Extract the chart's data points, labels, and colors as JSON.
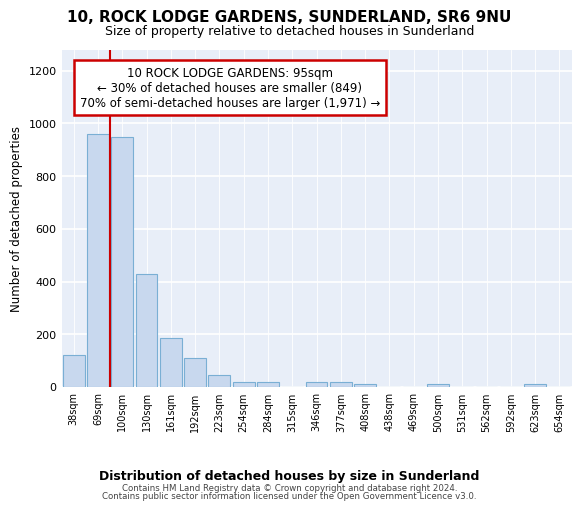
{
  "title": "10, ROCK LODGE GARDENS, SUNDERLAND, SR6 9NU",
  "subtitle": "Size of property relative to detached houses in Sunderland",
  "xlabel": "Distribution of detached houses by size in Sunderland",
  "ylabel": "Number of detached properties",
  "bar_color": "#c8d8ee",
  "bar_edge_color": "#7aafd4",
  "background_color": "#e8eef8",
  "grid_color": "#ffffff",
  "categories": [
    "38sqm",
    "69sqm",
    "100sqm",
    "130sqm",
    "161sqm",
    "192sqm",
    "223sqm",
    "254sqm",
    "284sqm",
    "315sqm",
    "346sqm",
    "377sqm",
    "408sqm",
    "438sqm",
    "469sqm",
    "500sqm",
    "531sqm",
    "562sqm",
    "592sqm",
    "623sqm",
    "654sqm"
  ],
  "values": [
    120,
    958,
    950,
    430,
    185,
    110,
    45,
    20,
    20,
    0,
    18,
    18,
    10,
    0,
    0,
    10,
    0,
    0,
    0,
    10,
    0
  ],
  "ylim": [
    0,
    1280
  ],
  "yticks": [
    0,
    200,
    400,
    600,
    800,
    1000,
    1200
  ],
  "red_line_color": "#cc0000",
  "annotation_line1": "10 ROCK LODGE GARDENS: 95sqm",
  "annotation_line2": "← 30% of detached houses are smaller (849)",
  "annotation_line3": "70% of semi-detached houses are larger (1,971) →",
  "annotation_box_color": "#ffffff",
  "annotation_box_edge": "#cc0000",
  "footer1": "Contains HM Land Registry data © Crown copyright and database right 2024.",
  "footer2": "Contains public sector information licensed under the Open Government Licence v3.0.",
  "fig_bg": "#ffffff"
}
